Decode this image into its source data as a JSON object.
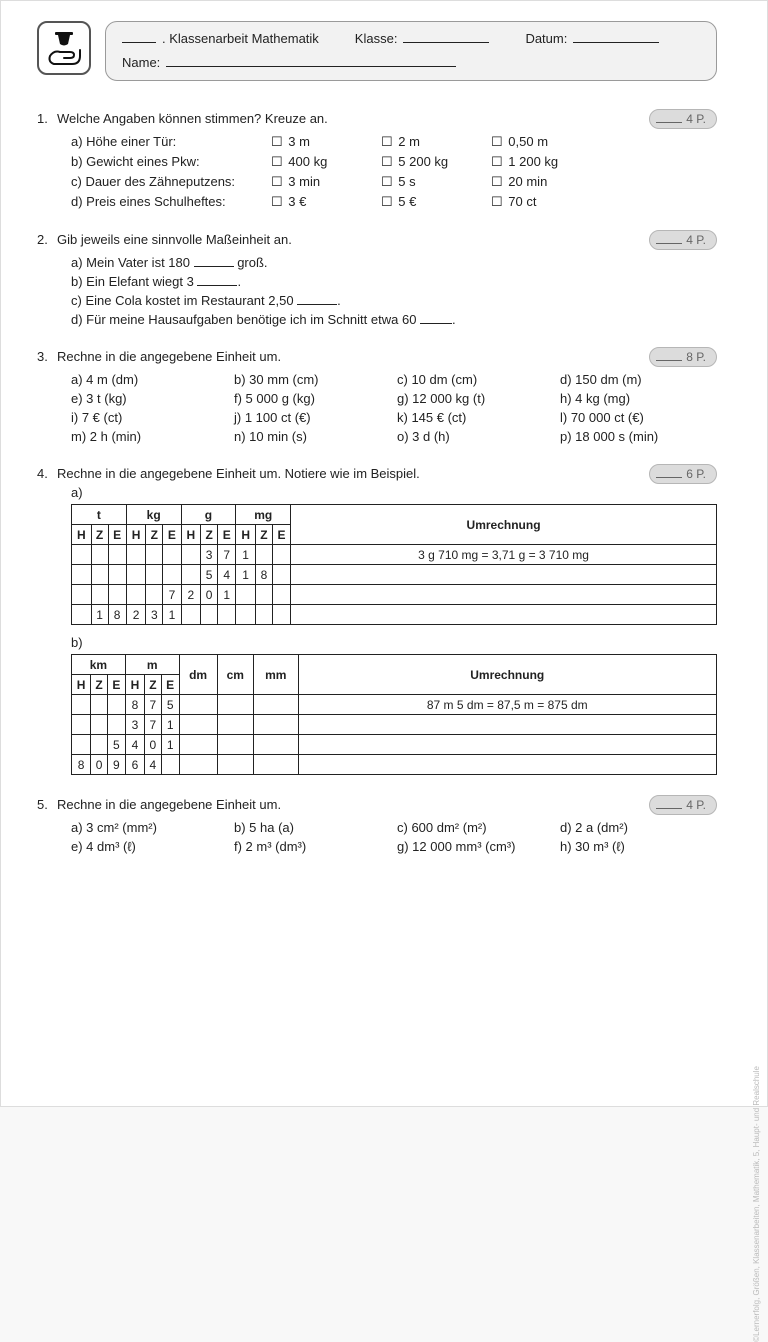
{
  "header": {
    "title_prefix_blank": true,
    "title_main": ". Klassenarbeit Mathematik",
    "label_class": "Klasse:",
    "label_date": "Datum:",
    "label_name": "Name:"
  },
  "questions": {
    "q1": {
      "num": "1.",
      "text": "Welche Angaben können stimmen? Kreuze an.",
      "points": "4 P.",
      "rows": [
        {
          "label": "a) Höhe einer Tür:",
          "opts": [
            "3 m",
            "2 m",
            "0,50 m"
          ]
        },
        {
          "label": "b) Gewicht eines Pkw:",
          "opts": [
            "400 kg",
            "5 200 kg",
            "1 200 kg"
          ]
        },
        {
          "label": "c) Dauer des Zähneputzens:",
          "opts": [
            "3 min",
            "5 s",
            "20 min"
          ]
        },
        {
          "label": "d) Preis eines Schulheftes:",
          "opts": [
            "3 €",
            "5 €",
            "70 ct"
          ]
        }
      ]
    },
    "q2": {
      "num": "2.",
      "text": "Gib jeweils eine sinnvolle Maßeinheit an.",
      "points": "4 P.",
      "lines": {
        "a_pre": "a) Mein Vater ist 180 ",
        "a_post": " groß.",
        "b_pre": "b) Ein Elefant wiegt 3 ",
        "b_post": ".",
        "c_pre": "c) Eine Cola kostet im Restaurant 2,50 ",
        "c_post": ".",
        "d_pre": "d) Für meine Hausaufgaben benötige ich im Schnitt etwa 60 ",
        "d_post": "."
      }
    },
    "q3": {
      "num": "3.",
      "text": "Rechne in die angegebene Einheit um.",
      "points": "8 P.",
      "items": [
        "a) 4 m (dm)",
        "b) 30 mm (cm)",
        "c) 10 dm (cm)",
        "d) 150 dm (m)",
        "e) 3 t (kg)",
        "f) 5 000 g (kg)",
        "g) 12 000 kg (t)",
        "h) 4 kg (mg)",
        "i) 7 € (ct)",
        "j) 1 100 ct (€)",
        "k) 145 € (ct)",
        "l) 70 000 ct (€)",
        "m) 2 h (min)",
        "n) 10 min (s)",
        "o) 3 d (h)",
        "p) 18 000 s (min)"
      ]
    },
    "q4": {
      "num": "4.",
      "text": "Rechne in die angegebene Einheit um. Notiere wie im Beispiel.",
      "points": "6 P.",
      "label_a": "a)",
      "label_b": "b)",
      "table_a": {
        "group_headers": [
          "t",
          "kg",
          "g",
          "mg",
          "Umrechnung"
        ],
        "sub_headers": [
          "H",
          "Z",
          "E",
          "H",
          "Z",
          "E",
          "H",
          "Z",
          "E",
          "H",
          "Z",
          "E"
        ],
        "rows": [
          [
            "",
            "",
            "",
            "",
            "",
            "",
            "",
            "3",
            "7",
            "1",
            "",
            "",
            " 3 g 710 mg = 3,71 g = 3 710 mg"
          ],
          [
            "",
            "",
            "",
            "",
            "",
            "",
            "",
            "5",
            "4",
            "1",
            "8",
            "",
            ""
          ],
          [
            "",
            "",
            "",
            "",
            "",
            "7",
            "2",
            "0",
            "1",
            "",
            "",
            "",
            ""
          ],
          [
            "",
            "1",
            "8",
            "2",
            "3",
            "1",
            "",
            "",
            "",
            "",
            "",
            "",
            ""
          ]
        ]
      },
      "table_b": {
        "group_headers": [
          "km",
          "m",
          "dm",
          "cm",
          "mm",
          "Umrechnung"
        ],
        "sub_headers": [
          "H",
          "Z",
          "E",
          "H",
          "Z",
          "E"
        ],
        "rows": [
          [
            "",
            "",
            "",
            "8",
            "7",
            "5",
            "",
            "",
            "",
            "87 m 5 dm = 87,5 m = 875 dm"
          ],
          [
            "",
            "",
            "",
            "3",
            "7",
            "1",
            "",
            "",
            "",
            ""
          ],
          [
            "",
            "",
            "5",
            "4",
            "0",
            "1",
            "",
            "",
            "",
            ""
          ],
          [
            "8",
            "0",
            "9",
            "6",
            "4",
            "",
            "",
            "",
            "",
            ""
          ]
        ]
      }
    },
    "q5": {
      "num": "5.",
      "text": "Rechne in die angegebene Einheit um.",
      "points": "4 P.",
      "items": [
        "a) 3 cm² (mm²)",
        "b) 5 ha (a)",
        "c) 600 dm² (m²)",
        "d) 2 a (dm²)",
        "e) 4 dm³ (ℓ)",
        "f) 2 m³ (dm³)",
        "g) 12 000 mm³ (cm³)",
        "h) 30 m³ (ℓ)"
      ]
    }
  },
  "side_credit": "©Lernerfolg, Größen, Klassenarbeiten, Mathematik, 5, Haupt- und Realschule"
}
